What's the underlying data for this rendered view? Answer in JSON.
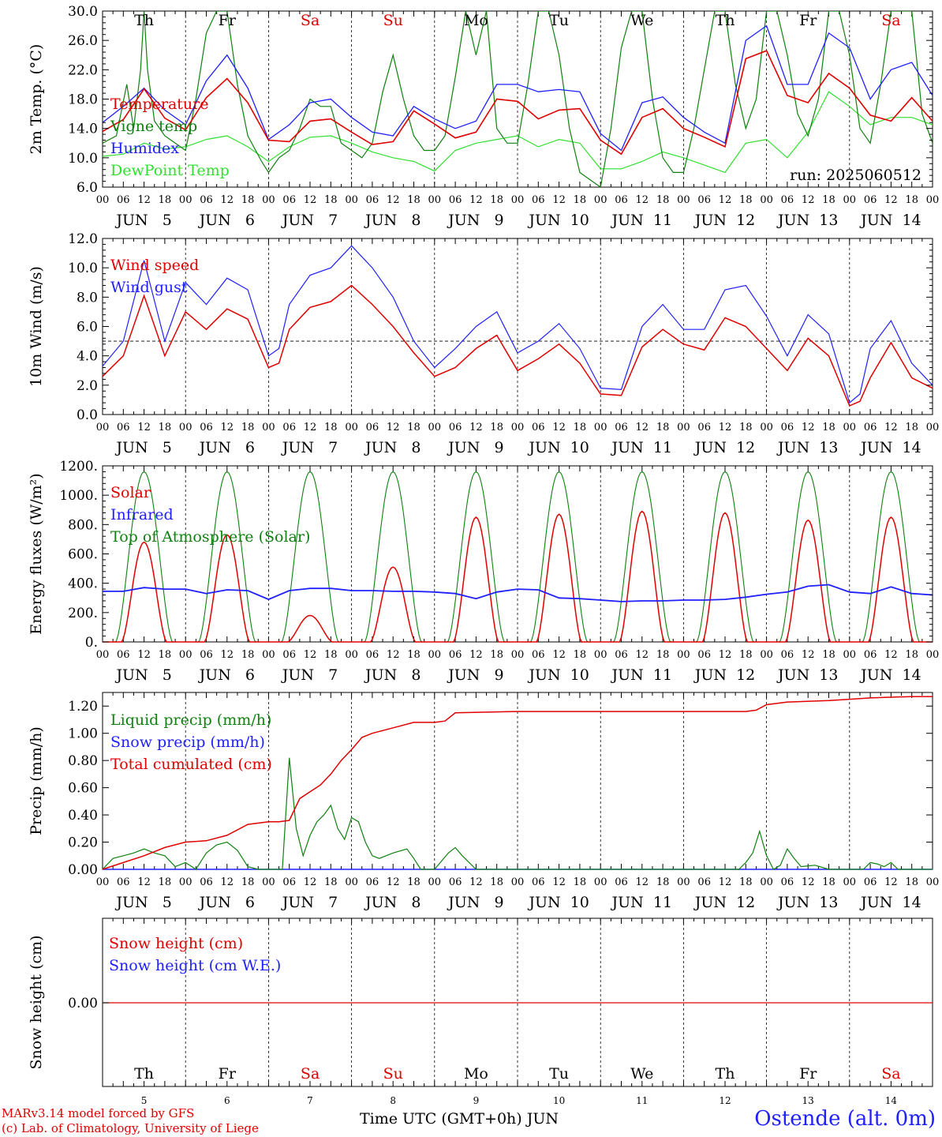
{
  "run_label": "run: 2025060512",
  "footer": {
    "model": "MARv3.14 model forced by GFS",
    "lab": "(c) Lab. of Climatology, University of Liege",
    "xlabel": "Time UTC (GMT+0h) JUN",
    "station": "Ostende (alt. 0m)"
  },
  "hour_ticks": [
    "00",
    "06",
    "12",
    "18"
  ],
  "date_labels": [
    "JUN   5",
    "JUN   6",
    "JUN   7",
    "JUN   8",
    "JUN   9",
    "JUN  10",
    "JUN  11",
    "JUN  12",
    "JUN  13",
    "JUN  14"
  ],
  "weekdays": [
    "Th",
    "Fr",
    "Sa",
    "Su",
    "Mo",
    "Tu",
    "We",
    "Th",
    "Fr",
    "Sa"
  ],
  "weekday_colors": [
    "#000000",
    "#000000",
    "#e00000",
    "#e00000",
    "#000000",
    "#000000",
    "#000000",
    "#000000",
    "#000000",
    "#e00000"
  ],
  "day_numbers": [
    "5",
    "6",
    "7",
    "8",
    "9",
    "10",
    "11",
    "12",
    "13",
    "14"
  ],
  "chart_data": [
    {
      "type": "line",
      "ylabel": "2m Temp. (°C)",
      "ylim": [
        6,
        30
      ],
      "yticks": [
        "6.0",
        "10.0",
        "14.0",
        "18.0",
        "22.0",
        "26.0",
        "30.0"
      ],
      "x_unit": "hours since Jun 5 00 UTC",
      "series": [
        {
          "name": "Temperature",
          "color": "#e00000",
          "x": [
            0,
            6,
            12,
            18,
            24,
            30,
            36,
            42,
            48,
            54,
            60,
            66,
            72,
            78,
            84,
            90,
            96,
            102,
            108,
            114,
            120,
            126,
            132,
            138,
            144,
            150,
            156,
            162,
            168,
            174,
            180,
            186,
            192,
            198,
            204,
            210,
            216,
            222,
            228,
            234,
            240
          ],
          "y": [
            13.6,
            15.2,
            19.4,
            15.4,
            13.8,
            18.2,
            20.8,
            17.5,
            12.4,
            12.2,
            15.0,
            15.3,
            13.5,
            11.8,
            12.2,
            16.4,
            14.6,
            12.7,
            13.5,
            18.0,
            17.7,
            15.3,
            16.5,
            16.7,
            12.4,
            10.5,
            15.5,
            16.7,
            14.0,
            12.8,
            11.5,
            23.5,
            24.6,
            18.5,
            17.5,
            21.5,
            19.5,
            15.8,
            15.0,
            18.2,
            15.0
          ]
        },
        {
          "name": "Vigne temp",
          "color": "#108010",
          "x": [
            0,
            4,
            7,
            9,
            11,
            12,
            13,
            15,
            18,
            21,
            24,
            27,
            30,
            33,
            36,
            39,
            42,
            46,
            48,
            51,
            54,
            57,
            60,
            63,
            66,
            69,
            72,
            75,
            78,
            81,
            84,
            87,
            90,
            93,
            96,
            99,
            102,
            105,
            108,
            111,
            114,
            117,
            120,
            123,
            126,
            129,
            132,
            135,
            138,
            141,
            144,
            147,
            150,
            153,
            156,
            159,
            162,
            165,
            168,
            171,
            174,
            177,
            180,
            183,
            186,
            189,
            192,
            195,
            198,
            201,
            204,
            207,
            210,
            213,
            216,
            219,
            222,
            225,
            228,
            231,
            234,
            237,
            240
          ],
          "y": [
            12,
            13,
            20,
            14,
            22,
            30,
            22,
            15,
            13,
            12,
            11,
            18,
            27,
            30,
            30,
            20,
            13,
            9.5,
            8,
            10,
            11,
            14,
            18,
            17,
            17,
            12,
            11,
            10,
            12,
            19,
            24,
            18,
            13,
            11,
            11,
            13,
            21,
            30,
            24,
            30,
            14,
            12,
            12,
            20,
            30,
            30,
            24,
            14,
            8,
            7,
            6,
            14,
            25,
            30,
            30,
            18,
            10,
            8,
            8,
            14,
            22,
            30,
            30,
            20,
            14,
            18,
            30,
            30,
            24,
            16,
            13,
            18,
            30,
            30,
            24,
            14,
            12,
            20,
            30,
            30,
            30,
            16,
            12
          ]
        },
        {
          "name": "Humidex",
          "color": "#2020ff",
          "x": [
            0,
            6,
            12,
            18,
            24,
            30,
            36,
            42,
            48,
            54,
            60,
            66,
            72,
            78,
            84,
            90,
            96,
            102,
            108,
            114,
            120,
            126,
            132,
            138,
            144,
            150,
            156,
            162,
            168,
            174,
            180,
            186,
            192,
            198,
            204,
            210,
            216,
            222,
            228,
            234,
            240
          ],
          "y": [
            14.8,
            17.0,
            19.5,
            16.5,
            14.5,
            20.5,
            24.0,
            19.5,
            12.5,
            14.5,
            17.5,
            18.0,
            15.5,
            13.5,
            13.0,
            17.0,
            15.3,
            14.0,
            15.0,
            20.0,
            20.0,
            19.0,
            19.3,
            19.0,
            13.3,
            11.0,
            17.5,
            18.3,
            15.5,
            13.5,
            12.0,
            26.0,
            28.0,
            20.0,
            20.0,
            27.0,
            25.0,
            18.0,
            22.0,
            23.0,
            18.5
          ]
        },
        {
          "name": "DewPoint Temp",
          "color": "#30e030",
          "x": [
            0,
            6,
            12,
            18,
            24,
            30,
            36,
            42,
            48,
            54,
            60,
            66,
            72,
            78,
            84,
            90,
            96,
            102,
            108,
            114,
            120,
            126,
            132,
            138,
            144,
            150,
            156,
            162,
            168,
            174,
            180,
            186,
            192,
            198,
            204,
            210,
            216,
            222,
            228,
            234,
            240
          ],
          "y": [
            10.2,
            10.5,
            12.0,
            11.2,
            11.5,
            12.5,
            13.0,
            11.5,
            9.5,
            11.5,
            12.8,
            13.0,
            12.0,
            10.8,
            10.0,
            9.5,
            8.2,
            11.0,
            12.0,
            12.5,
            13.0,
            11.5,
            12.5,
            12.0,
            8.5,
            8.5,
            9.5,
            10.8,
            10.0,
            9.0,
            8.0,
            12.0,
            12.5,
            10.0,
            13.5,
            19.0,
            17.0,
            14.5,
            15.5,
            15.5,
            14.5
          ]
        }
      ]
    },
    {
      "type": "line",
      "ylabel": "10m Wind (m/s)",
      "ylim": [
        0,
        12
      ],
      "yticks": [
        "0.0",
        "2.0",
        "4.0",
        "6.0",
        "8.0",
        "10.0",
        "12.0"
      ],
      "reference_line": 5,
      "x_unit": "hours since Jun 5 00 UTC",
      "series": [
        {
          "name": "Wind speed",
          "color": "#e00000",
          "x": [
            0,
            6,
            12,
            18,
            24,
            30,
            36,
            42,
            48,
            51,
            54,
            60,
            66,
            72,
            78,
            84,
            90,
            96,
            102,
            108,
            114,
            120,
            126,
            132,
            138,
            144,
            150,
            156,
            162,
            168,
            174,
            180,
            186,
            192,
            198,
            204,
            210,
            216,
            219,
            222,
            228,
            234,
            240
          ],
          "y": [
            2.6,
            4.0,
            8.1,
            4.0,
            7.0,
            5.8,
            7.2,
            6.5,
            3.2,
            3.5,
            5.8,
            7.3,
            7.7,
            8.8,
            7.5,
            6.0,
            4.2,
            2.6,
            3.2,
            4.5,
            5.4,
            3.0,
            3.8,
            4.8,
            3.5,
            1.4,
            1.3,
            4.6,
            5.8,
            4.8,
            4.4,
            6.6,
            6.0,
            4.5,
            3.0,
            5.2,
            4.0,
            0.6,
            0.9,
            2.5,
            4.9,
            2.5,
            1.8
          ]
        },
        {
          "name": "Wind gust",
          "color": "#2020ff",
          "x": [
            0,
            6,
            12,
            18,
            24,
            30,
            36,
            42,
            48,
            51,
            54,
            60,
            66,
            72,
            78,
            84,
            90,
            96,
            102,
            108,
            114,
            120,
            126,
            132,
            138,
            144,
            150,
            156,
            162,
            168,
            174,
            180,
            186,
            192,
            198,
            204,
            210,
            216,
            219,
            222,
            228,
            234,
            240
          ],
          "y": [
            3.3,
            5.0,
            10.5,
            5.0,
            9.0,
            7.5,
            9.3,
            8.5,
            4.0,
            4.5,
            7.5,
            9.5,
            10.0,
            11.5,
            10.0,
            8.0,
            5.0,
            3.2,
            4.5,
            6.0,
            7.0,
            4.2,
            5.0,
            6.2,
            4.5,
            1.8,
            1.7,
            6.0,
            7.5,
            5.8,
            5.8,
            8.5,
            8.8,
            6.7,
            4.0,
            6.8,
            5.5,
            0.8,
            1.4,
            4.5,
            6.4,
            3.5,
            2.0
          ]
        }
      ]
    },
    {
      "type": "line",
      "ylabel": "Energy fluxes (W/m²)",
      "ylim": [
        0,
        1200
      ],
      "yticks": [
        "0.",
        "200.",
        "400.",
        "600.",
        "800.",
        "1000.",
        "1200."
      ],
      "x_unit": "hours since Jun 5 00 UTC",
      "series": [
        {
          "name": "Solar",
          "color": "#e00000",
          "peaks": [
            680,
            730,
            180,
            510,
            850,
            870,
            890,
            880,
            830,
            850
          ]
        },
        {
          "name": "Infrared",
          "color": "#2020ff",
          "x": [
            0,
            6,
            12,
            18,
            24,
            30,
            36,
            42,
            48,
            54,
            60,
            66,
            72,
            78,
            84,
            90,
            96,
            102,
            108,
            114,
            120,
            126,
            132,
            138,
            144,
            150,
            156,
            162,
            168,
            174,
            180,
            186,
            192,
            198,
            204,
            210,
            216,
            222,
            228,
            234,
            240
          ],
          "y": [
            345,
            345,
            370,
            360,
            360,
            330,
            355,
            350,
            290,
            350,
            365,
            365,
            350,
            350,
            345,
            345,
            340,
            330,
            295,
            340,
            360,
            355,
            300,
            295,
            285,
            275,
            280,
            280,
            285,
            285,
            290,
            305,
            325,
            340,
            380,
            390,
            340,
            330,
            375,
            330,
            320
          ]
        },
        {
          "name": "Top of Atmosphere (Solar)",
          "color": "#108010",
          "peaks": [
            1160,
            1160,
            1160,
            1160,
            1160,
            1160,
            1160,
            1160,
            1160,
            1160
          ]
        }
      ]
    },
    {
      "type": "line",
      "ylabel": "Precip (mm/h)",
      "ylim": [
        0,
        1.3
      ],
      "yticks": [
        "0.00",
        "0.20",
        "0.40",
        "0.60",
        "0.80",
        "1.00",
        "1.20"
      ],
      "x_unit": "hours since Jun 5 00 UTC",
      "series": [
        {
          "name": "Liquid precip (mm/h)",
          "color": "#108010",
          "x": [
            0,
            3,
            6,
            9,
            12,
            15,
            18,
            21,
            24,
            27,
            30,
            33,
            36,
            39,
            42,
            45,
            48,
            50,
            52,
            54,
            56,
            58,
            60,
            62,
            64,
            66,
            68,
            70,
            72,
            74,
            76,
            78,
            80,
            84,
            88,
            90,
            92,
            96,
            100,
            102,
            104,
            108,
            112,
            116,
            120,
            124,
            136,
            184,
            186,
            188,
            190,
            192,
            194,
            196,
            198,
            200,
            202,
            206,
            210,
            220,
            222,
            224,
            226,
            228,
            230,
            234,
            240
          ],
          "y": [
            0,
            0.08,
            0.1,
            0.12,
            0.15,
            0.12,
            0.1,
            0.02,
            0.05,
            0,
            0.12,
            0.18,
            0.2,
            0.14,
            0.02,
            0,
            0,
            0,
            0,
            0.82,
            0.3,
            0.1,
            0.25,
            0.35,
            0.4,
            0.47,
            0.3,
            0.22,
            0.38,
            0.35,
            0.2,
            0.1,
            0.08,
            0.12,
            0.15,
            0.08,
            0,
            0,
            0.12,
            0.16,
            0.1,
            0,
            0,
            0,
            0,
            0,
            0,
            0,
            0.05,
            0.12,
            0.28,
            0.1,
            0,
            0.03,
            0.15,
            0.08,
            0.02,
            0.03,
            0,
            0,
            0.05,
            0.04,
            0.02,
            0.05,
            0,
            0,
            0
          ]
        },
        {
          "name": "Snow precip (mm/h)",
          "color": "#2020ff",
          "x": [
            0,
            240
          ],
          "y": [
            0,
            0
          ]
        },
        {
          "name": "Total cumulated (cm)",
          "color": "#e00000",
          "x": [
            0,
            6,
            12,
            18,
            24,
            30,
            36,
            42,
            48,
            51,
            54,
            57,
            60,
            63,
            66,
            69,
            72,
            75,
            78,
            84,
            90,
            96,
            99,
            102,
            120,
            144,
            168,
            186,
            189,
            192,
            198,
            210,
            216,
            222,
            228,
            234,
            240
          ],
          "y": [
            0,
            0.05,
            0.1,
            0.16,
            0.2,
            0.21,
            0.25,
            0.33,
            0.35,
            0.35,
            0.36,
            0.52,
            0.57,
            0.62,
            0.7,
            0.8,
            0.88,
            0.97,
            1.0,
            1.04,
            1.08,
            1.08,
            1.09,
            1.15,
            1.16,
            1.16,
            1.16,
            1.16,
            1.17,
            1.21,
            1.23,
            1.24,
            1.25,
            1.26,
            1.265,
            1.27,
            1.27
          ]
        }
      ]
    },
    {
      "type": "line",
      "ylabel": "Snow height (cm)",
      "ytick": "0.00",
      "x_unit": "hours since Jun 5 00 UTC",
      "series": [
        {
          "name": "Snow height (cm)",
          "color": "#e00000",
          "x": [
            0,
            240
          ],
          "y": [
            0,
            0
          ]
        },
        {
          "name": "Snow height (cm W.E.)",
          "color": "#2020ff",
          "x": [
            0,
            240
          ],
          "y": [
            0,
            0
          ]
        }
      ]
    }
  ]
}
